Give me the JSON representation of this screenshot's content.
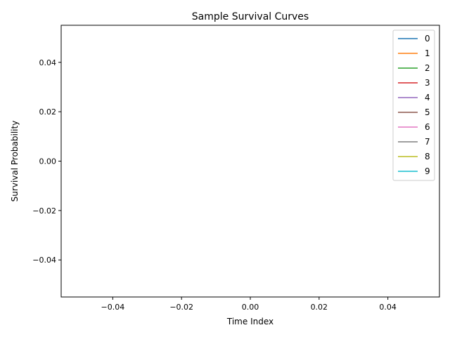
{
  "chart_data": {
    "type": "line",
    "title": "Sample Survival Curves",
    "xlabel": "Time Index",
    "ylabel": "Survival Probability",
    "xlim": [
      -0.055,
      0.055
    ],
    "ylim": [
      -0.055,
      0.055
    ],
    "xticks": [
      -0.04,
      -0.02,
      0.0,
      0.02,
      0.04
    ],
    "xtick_labels": [
      "−0.04",
      "−0.02",
      "0.00",
      "0.02",
      "0.04"
    ],
    "yticks": [
      -0.04,
      -0.02,
      0.0,
      0.02,
      0.04
    ],
    "ytick_labels": [
      "−0.04",
      "−0.02",
      "0.00",
      "0.02",
      "0.04"
    ],
    "grid": false,
    "legend_position": "top-right",
    "series": [
      {
        "name": "0",
        "color": "#1f77b4",
        "x": [],
        "y": []
      },
      {
        "name": "1",
        "color": "#ff7f0e",
        "x": [],
        "y": []
      },
      {
        "name": "2",
        "color": "#2ca02c",
        "x": [],
        "y": []
      },
      {
        "name": "3",
        "color": "#d62728",
        "x": [],
        "y": []
      },
      {
        "name": "4",
        "color": "#9467bd",
        "x": [],
        "y": []
      },
      {
        "name": "5",
        "color": "#8c564b",
        "x": [],
        "y": []
      },
      {
        "name": "6",
        "color": "#e377c2",
        "x": [],
        "y": []
      },
      {
        "name": "7",
        "color": "#7f7f7f",
        "x": [],
        "y": []
      },
      {
        "name": "8",
        "color": "#bcbd22",
        "x": [],
        "y": []
      },
      {
        "name": "9",
        "color": "#17becf",
        "x": [],
        "y": []
      }
    ]
  }
}
